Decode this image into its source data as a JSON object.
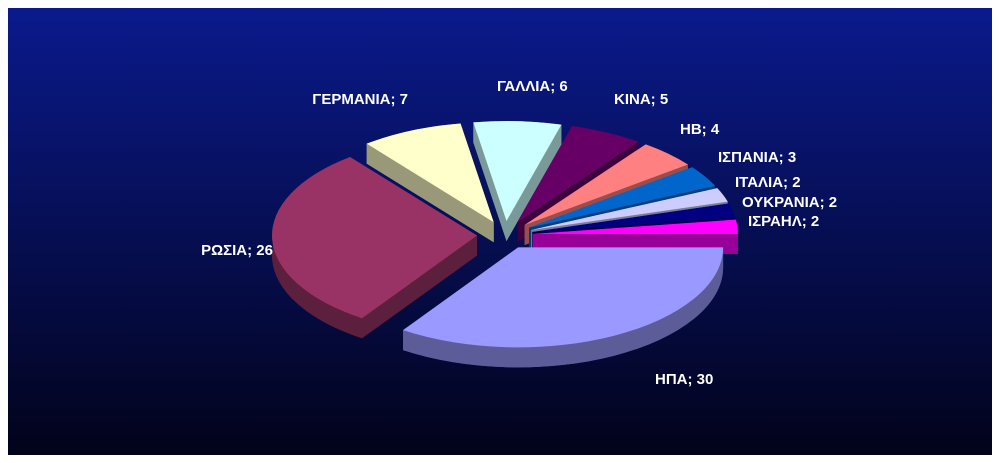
{
  "chart_data": {
    "type": "pie3d",
    "categories": [
      "ΗΠΑ",
      "ΡΩΣΙΑ",
      "ΓΕΡΜΑΝΙΑ",
      "ΓΑΛΛΙΑ",
      "ΚΙΝΑ",
      "ΗΒ",
      "ΙΣΠΑΝΙΑ",
      "ΙΤΑΛΙΑ",
      "ΟΥΚΡΑΝΙΑ",
      "ΙΣΡΑΗΛ"
    ],
    "values": [
      30,
      26,
      7,
      6,
      5,
      4,
      3,
      2,
      2,
      2
    ],
    "value_labels": [
      "ΗΠΑ; 30",
      "ΡΩΣΙΑ; 26",
      "ΓΕΡΜΑΝΙΑ; 7",
      "ΓΑΛΛΙΑ; 6",
      "ΚΙΝΑ; 5",
      "ΗΒ; 4",
      "ΙΣΠΑΝΙΑ; 3",
      "ΙΤΑΛΙΑ; 2",
      "ΟΥΚΡΑΝΙΑ; 2",
      "ΙΣΡΑΗΛ; 2"
    ],
    "colors": [
      "#9999ff",
      "#993366",
      "#ffffcc",
      "#ccffff",
      "#660066",
      "#ff8080",
      "#0066cc",
      "#ccccff",
      "#000080",
      "#ff00ff"
    ]
  }
}
